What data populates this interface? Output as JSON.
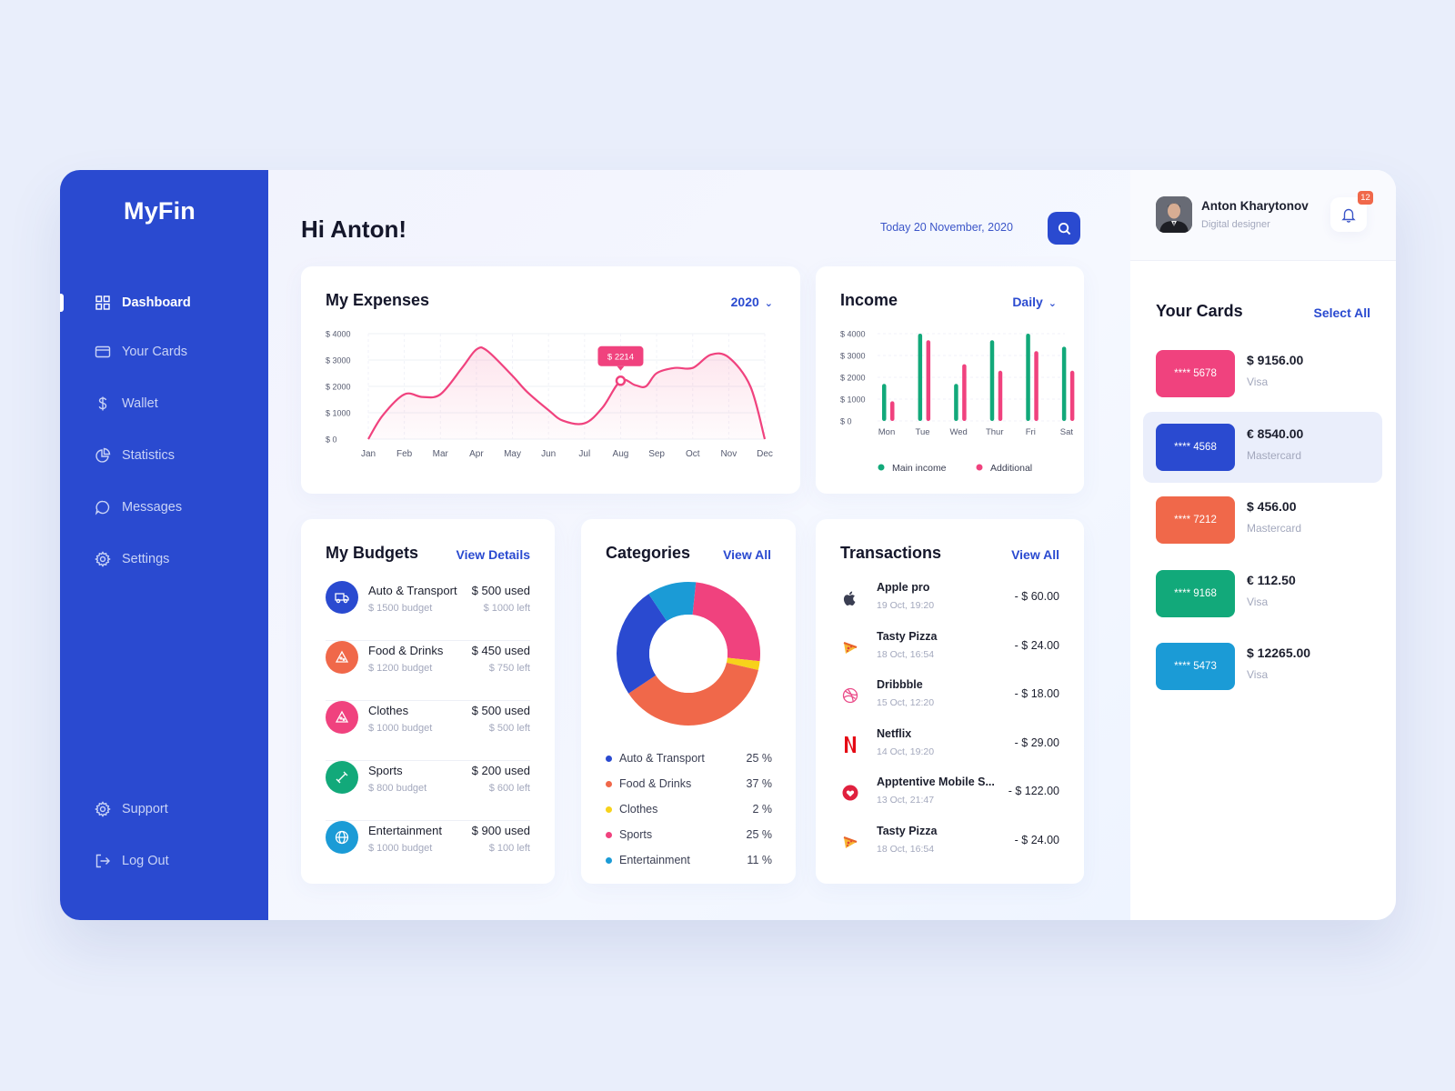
{
  "app": {
    "logo": "MyFin"
  },
  "sidebar": {
    "items": [
      {
        "label": "Dashboard",
        "icon": "grid-icon"
      },
      {
        "label": "Your Cards",
        "icon": "card-icon"
      },
      {
        "label": "Wallet",
        "icon": "dollar-icon"
      },
      {
        "label": "Statistics",
        "icon": "pie-icon"
      },
      {
        "label": "Messages",
        "icon": "chat-icon"
      },
      {
        "label": "Settings",
        "icon": "gear-icon"
      }
    ],
    "bottom": [
      {
        "label": "Support",
        "icon": "gear-icon"
      },
      {
        "label": "Log Out",
        "icon": "logout-icon"
      }
    ]
  },
  "header": {
    "greeting": "Hi Anton!",
    "date": "Today 20 November, 2020"
  },
  "expenses": {
    "title": "My Expenses",
    "selector": "2020",
    "tooltip": "$ 2214"
  },
  "income": {
    "title": "Income",
    "selector": "Daily"
  },
  "budgets": {
    "title": "My Budgets",
    "link": "View Details",
    "rows": [
      {
        "name": "Auto & Transport",
        "budget": "$ 1500 budget",
        "used": "$ 500 used",
        "left": "$ 1000 left",
        "color": "#2a4ad0",
        "icon": "truck-icon"
      },
      {
        "name": "Food & Drinks",
        "budget": "$ 1200 budget",
        "used": "$ 450 used",
        "left": "$ 750 left",
        "color": "#f0684a",
        "icon": "pizza-icon"
      },
      {
        "name": "Clothes",
        "budget": "$ 1000 budget",
        "used": "$ 500 used",
        "left": "$ 500 left",
        "color": "#f0427e",
        "icon": "pizza-icon"
      },
      {
        "name": "Sports",
        "budget": "$ 800 budget",
        "used": "$ 200 used",
        "left": "$ 600 left",
        "color": "#12a97a",
        "icon": "dumbbell-icon"
      },
      {
        "name": "Entertainment",
        "budget": "$ 1000 budget",
        "used": "$ 900 used",
        "left": "$ 100 left",
        "color": "#1b9bd6",
        "icon": "globe-icon"
      }
    ]
  },
  "categories": {
    "title": "Categories",
    "link": "View All",
    "items": [
      {
        "name": "Auto & Transport",
        "pct": "25 %",
        "color": "#2a4ad0"
      },
      {
        "name": "Food & Drinks",
        "pct": "37 %",
        "color": "#f0684a"
      },
      {
        "name": "Clothes",
        "pct": "2 %",
        "color": "#f7d21b"
      },
      {
        "name": "Sports",
        "pct": "25 %",
        "color": "#f0427e"
      },
      {
        "name": "Entertainment",
        "pct": "11 %",
        "color": "#1b9bd6"
      }
    ]
  },
  "transactions": {
    "title": "Transactions",
    "link": "View All",
    "rows": [
      {
        "name": "Apple pro",
        "date": "19 Oct, 19:20",
        "amount": "- $ 60.00",
        "icon": "apple-icon"
      },
      {
        "name": "Tasty Pizza",
        "date": "18 Oct, 16:54",
        "amount": "- $ 24.00",
        "icon": "pizza-icon"
      },
      {
        "name": "Dribbble",
        "date": "15 Oct, 12:20",
        "amount": "- $ 18.00",
        "icon": "dribbble-icon"
      },
      {
        "name": "Netflix",
        "date": "14 Oct, 19:20",
        "amount": "- $ 29.00",
        "icon": "netflix-icon"
      },
      {
        "name": "Apptentive Mobile S...",
        "date": "13 Oct, 21:47",
        "amount": "- $ 122.00",
        "icon": "apptentive-icon"
      },
      {
        "name": "Tasty Pizza",
        "date": "18 Oct, 16:54",
        "amount": "- $ 24.00",
        "icon": "pizza-icon"
      }
    ]
  },
  "user": {
    "name": "Anton Kharytonov",
    "role": "Digital designer",
    "notifications": "12"
  },
  "your_cards": {
    "title": "Your Cards",
    "link": "Select All",
    "cards": [
      {
        "number": "**** 5678",
        "amount": "$ 9156.00",
        "type": "Visa",
        "color": "#f0427e",
        "selected": false
      },
      {
        "number": "**** 4568",
        "amount": "€ 8540.00",
        "type": "Mastercard",
        "color": "#2a4ad0",
        "selected": true
      },
      {
        "number": "**** 7212",
        "amount": "$ 456.00",
        "type": "Mastercard",
        "color": "#f0684a",
        "selected": false
      },
      {
        "number": "**** 9168",
        "amount": "€ 112.50",
        "type": "Visa",
        "color": "#12a97a",
        "selected": false
      },
      {
        "number": "**** 5473",
        "amount": "$ 12265.00",
        "type": "Visa",
        "color": "#1b9bd6",
        "selected": false
      }
    ]
  },
  "chart_data": [
    {
      "type": "line",
      "title": "My Expenses",
      "categories": [
        "Jan",
        "Feb",
        "Mar",
        "Apr",
        "May",
        "Jun",
        "Jul",
        "Aug",
        "Sep",
        "Oct",
        "Nov",
        "Dec"
      ],
      "y_ticks": [
        "$ 0",
        "$ 1000",
        "$ 2000",
        "$ 3000",
        "$ 4000"
      ],
      "ylim": [
        0,
        4000
      ],
      "x": [
        0,
        0.4,
        1,
        1.5,
        2,
        2.6,
        3,
        3.3,
        4,
        4.4,
        5,
        5.4,
        6,
        6.5,
        7,
        7.4,
        7.7,
        8,
        8.5,
        9,
        9.5,
        10,
        10.6,
        11
      ],
      "values": [
        0,
        900,
        1700,
        1600,
        1700,
        2700,
        3400,
        3350,
        2400,
        1800,
        1100,
        700,
        600,
        1200,
        2214,
        2050,
        2000,
        2500,
        2700,
        2700,
        3200,
        3100,
        2000,
        0
      ],
      "highlight": {
        "x": "Aug",
        "value": 2214,
        "label": "$ 2214"
      },
      "color": "#f0427e",
      "grid": true
    },
    {
      "type": "bar",
      "title": "Income",
      "categories": [
        "Mon",
        "Tue",
        "Wed",
        "Thur",
        "Fri",
        "Sat"
      ],
      "y_ticks": [
        "$ 0",
        "$ 1000",
        "$ 2000",
        "$ 3000",
        "$ 4000"
      ],
      "ylim": [
        0,
        4000
      ],
      "series": [
        {
          "name": "Main income",
          "color": "#12a97a",
          "values": [
            1700,
            4000,
            1700,
            3700,
            4000,
            3400
          ]
        },
        {
          "name": "Additional",
          "color": "#f0427e",
          "values": [
            900,
            3700,
            2600,
            2300,
            3200,
            2300
          ]
        }
      ],
      "legend": "bottom"
    },
    {
      "type": "pie",
      "title": "Categories",
      "categories": [
        "Auto & Transport",
        "Food & Drinks",
        "Clothes",
        "Sports",
        "Entertainment"
      ],
      "values": [
        25,
        37,
        2,
        25,
        11
      ],
      "colors": [
        "#2a4ad0",
        "#f0684a",
        "#f7d21b",
        "#f0427e",
        "#1b9bd6"
      ]
    }
  ]
}
